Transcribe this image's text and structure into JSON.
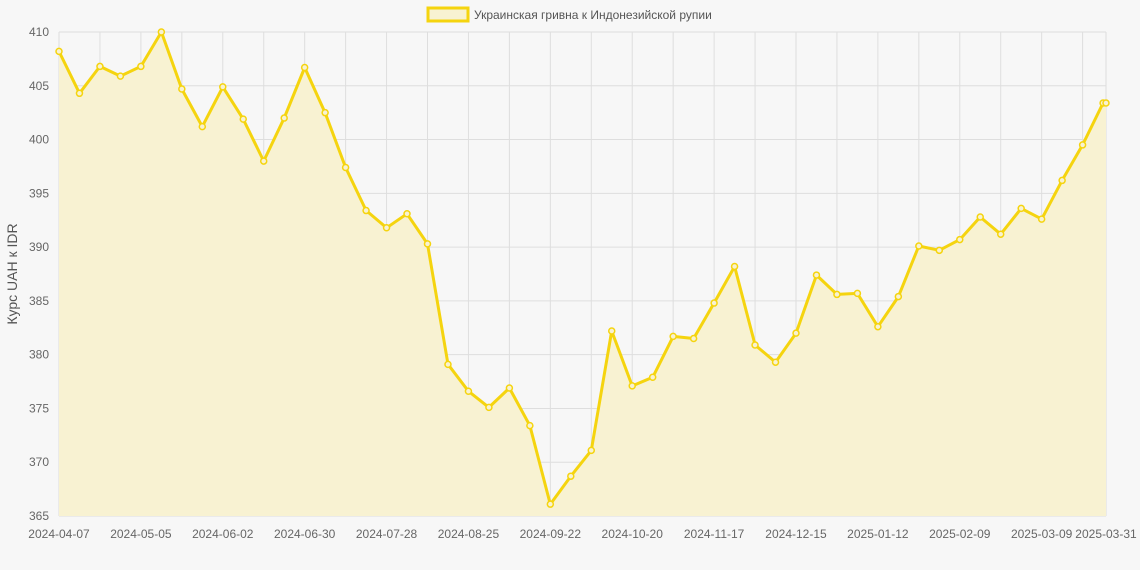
{
  "chart_data": {
    "type": "line",
    "legend": {
      "label": "Украинская гривна к Индонезийской рупии",
      "position": "top-center"
    },
    "ylabel": "Курс UAH к IDR",
    "xlabel": "",
    "ylim": [
      365,
      410
    ],
    "y_ticks": [
      "410",
      "405",
      "400",
      "395",
      "390",
      "385",
      "380",
      "375",
      "370",
      "365"
    ],
    "x_tick_labels": [
      "2024-04-07",
      "2024-05-05",
      "2024-06-02",
      "2024-06-30",
      "2024-07-28",
      "2024-08-25",
      "2024-09-22",
      "2024-10-20",
      "2024-11-17",
      "2024-12-15",
      "2025-01-12",
      "2025-02-09",
      "2025-03-09",
      "2025-03-31"
    ],
    "grid": true,
    "filled": true,
    "colors": {
      "line": "#f5d40f",
      "fill": "#f8f2d2",
      "background": "#f7f7f7",
      "grid": "#dedede"
    },
    "series": [
      {
        "name": "Украинская гривна к Индонезийской рупии",
        "x": [
          "2024-04-07",
          "2024-04-14",
          "2024-04-21",
          "2024-04-28",
          "2024-05-05",
          "2024-05-12",
          "2024-05-19",
          "2024-05-26",
          "2024-06-02",
          "2024-06-09",
          "2024-06-16",
          "2024-06-23",
          "2024-06-30",
          "2024-07-07",
          "2024-07-14",
          "2024-07-21",
          "2024-07-28",
          "2024-08-04",
          "2024-08-11",
          "2024-08-18",
          "2024-08-25",
          "2024-09-01",
          "2024-09-08",
          "2024-09-15",
          "2024-09-22",
          "2024-09-29",
          "2024-10-06",
          "2024-10-13",
          "2024-10-20",
          "2024-10-27",
          "2024-11-03",
          "2024-11-10",
          "2024-11-17",
          "2024-11-24",
          "2024-12-01",
          "2024-12-08",
          "2024-12-15",
          "2024-12-22",
          "2024-12-29",
          "2025-01-05",
          "2025-01-12",
          "2025-01-19",
          "2025-01-26",
          "2025-02-02",
          "2025-02-09",
          "2025-02-16",
          "2025-02-23",
          "2025-03-02",
          "2025-03-09",
          "2025-03-16",
          "2025-03-23",
          "2025-03-30",
          "2025-03-31"
        ],
        "values": [
          408.2,
          404.3,
          406.8,
          405.9,
          406.8,
          410.0,
          404.7,
          401.2,
          404.9,
          401.9,
          398.0,
          402.0,
          406.7,
          402.5,
          397.4,
          393.4,
          391.8,
          393.1,
          390.3,
          379.1,
          376.6,
          375.1,
          376.9,
          373.4,
          366.1,
          368.7,
          371.1,
          382.2,
          377.1,
          377.9,
          381.7,
          381.5,
          384.8,
          388.2,
          380.9,
          379.3,
          382.0,
          387.4,
          385.6,
          385.7,
          382.6,
          385.4,
          390.1,
          389.7,
          390.7,
          392.8,
          391.2,
          393.6,
          392.6,
          396.2,
          399.5,
          403.4,
          403.4
        ]
      }
    ]
  }
}
